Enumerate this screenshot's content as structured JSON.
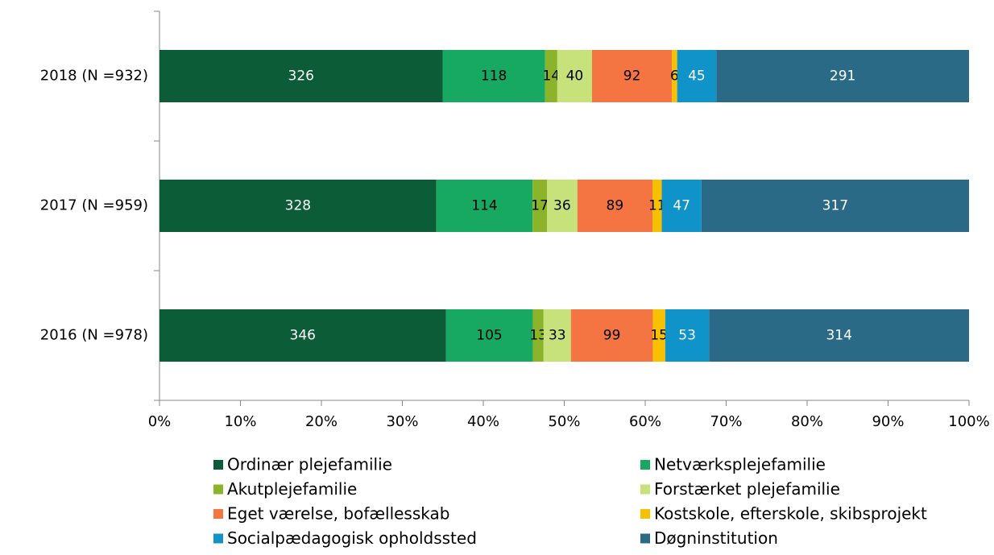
{
  "chart_data": {
    "type": "bar",
    "orientation": "horizontal",
    "stack": "percent",
    "categories": [
      "2018 (N =932)",
      "2017 (N =959)",
      "2016 (N =978)"
    ],
    "series": [
      {
        "name": "Ordinær plejefamilie",
        "color": "#0b5c37",
        "label_color": "#ffffff",
        "values": [
          326,
          328,
          346
        ]
      },
      {
        "name": "Netværksplejefamilie",
        "color": "#17a862",
        "label_color": "#000000",
        "values": [
          118,
          114,
          105
        ]
      },
      {
        "name": "Akutplejefamilie",
        "color": "#8cb42b",
        "label_color": "#000000",
        "values": [
          14,
          17,
          13
        ]
      },
      {
        "name": "Forstærket plejefamilie",
        "color": "#c8e27b",
        "label_color": "#000000",
        "values": [
          40,
          36,
          33
        ]
      },
      {
        "name": "Eget værelse, bofællesskab",
        "color": "#f47442",
        "label_color": "#000000",
        "values": [
          92,
          89,
          99
        ]
      },
      {
        "name": "Kostskole, efterskole, skibsprojekt",
        "color": "#f8c100",
        "label_color": "#000000",
        "values": [
          6,
          11,
          15
        ]
      },
      {
        "name": "Socialpædagogisk opholdssted",
        "color": "#0f93c8",
        "label_color": "#ffffff",
        "values": [
          45,
          47,
          53
        ]
      },
      {
        "name": "Døgninstitution",
        "color": "#2b6a86",
        "label_color": "#ffffff",
        "values": [
          291,
          317,
          314
        ]
      }
    ],
    "xlim": [
      0,
      100
    ],
    "xticks": [
      {
        "value": 0,
        "label": "0%"
      },
      {
        "value": 10,
        "label": "10%"
      },
      {
        "value": 20,
        "label": "20%"
      },
      {
        "value": 30,
        "label": "30%"
      },
      {
        "value": 40,
        "label": "40%"
      },
      {
        "value": 50,
        "label": "50%"
      },
      {
        "value": 60,
        "label": "60%"
      },
      {
        "value": 70,
        "label": "70%"
      },
      {
        "value": 80,
        "label": "80%"
      },
      {
        "value": 90,
        "label": "90%"
      },
      {
        "value": 100,
        "label": "100%"
      }
    ],
    "legend": "bottom"
  }
}
